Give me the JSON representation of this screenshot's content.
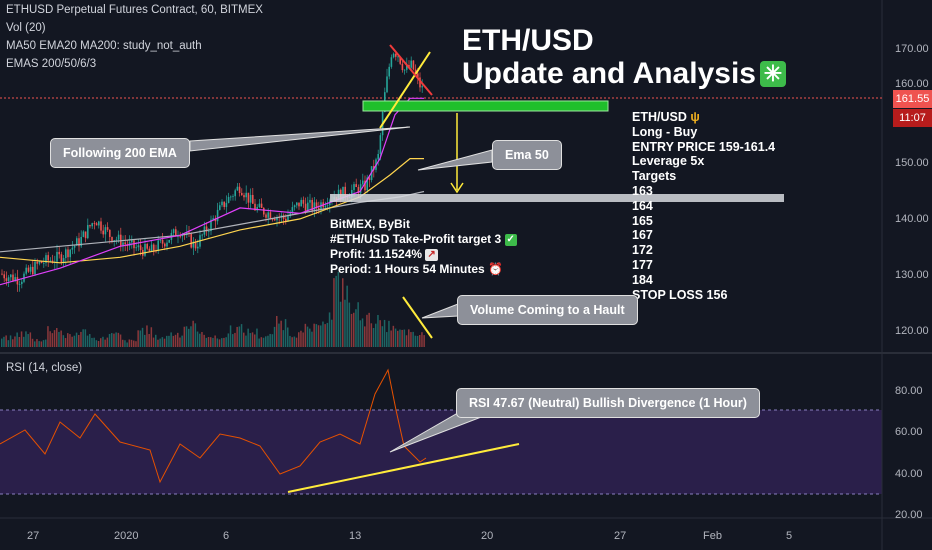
{
  "header": {
    "symbol_line": "ETHUSD Perpetual Futures Contract, 60, BITMEX",
    "indicators": [
      "Vol (20)",
      "MA50 EMA20 MA200: study_not_auth",
      "EMAS 200/50/6/3"
    ],
    "rsi_label": "RSI (14, close)"
  },
  "title": {
    "line1": "ETH/USD",
    "line2": "Update and Analysis",
    "icon": "sparkle-icon"
  },
  "trade_setup": {
    "pair": "ETH/USD",
    "pair_icon": "trident-icon",
    "direction": "Long - Buy",
    "entry": "ENTRY PRICE 159-161.4",
    "leverage": "Leverage 5x",
    "targets_label": "Targets",
    "targets": [
      "163",
      "164",
      "165",
      "167",
      "172",
      "177",
      "184"
    ],
    "stop_loss": "STOP LOSS 156"
  },
  "profit_box": {
    "exchanges": "BitMEX, ByBit",
    "take_profit": "#ETH/USD Take-Profit target 3",
    "profit": "Profit: 11.1524%",
    "period": "Period: 1 Hours 54 Minutes"
  },
  "callouts": {
    "ema200": "Following 200 EMA",
    "ema50": "Ema 50",
    "volume": "Volume Coming to a Hault",
    "rsi": "RSI 47.67 (Neutral) Bullish Divergence (1 Hour)"
  },
  "price_axis": {
    "ticks": [
      "170.00",
      "160.00",
      "150.00",
      "140.00",
      "130.00",
      "120.00"
    ],
    "last_price": "161.55",
    "countdown": "11:07"
  },
  "rsi_axis": {
    "ticks": [
      "80.00",
      "60.00",
      "40.00",
      "20.00"
    ]
  },
  "time_axis": {
    "ticks": [
      "27",
      "2020",
      "6",
      "13",
      "20",
      "27",
      "Feb",
      "5"
    ]
  },
  "colors": {
    "background": "#131722",
    "up": "#26a69a",
    "down": "#ef5350",
    "ema_fast": "#e040fb",
    "ma50": "#ffd54f",
    "ema200": "#b0b3ba",
    "rsi_line": "#e65100",
    "rsi_band": "#2a1f4a",
    "annotation": "#ffeb3b",
    "support": "#1fbf2b"
  },
  "chart_data": {
    "type": "candlestick",
    "timeframe": "60",
    "price_range": [
      116,
      176
    ],
    "rsi_range": [
      18,
      96
    ],
    "rsi_levels": [
      70,
      30
    ],
    "price_path": [
      [
        0,
        129
      ],
      [
        20,
        128
      ],
      [
        40,
        131
      ],
      [
        60,
        132
      ],
      [
        80,
        135
      ],
      [
        95,
        139
      ],
      [
        110,
        136
      ],
      [
        130,
        134
      ],
      [
        150,
        133
      ],
      [
        165,
        135
      ],
      [
        180,
        137
      ],
      [
        195,
        134
      ],
      [
        210,
        138
      ],
      [
        225,
        142
      ],
      [
        240,
        145
      ],
      [
        255,
        141
      ],
      [
        270,
        140
      ],
      [
        285,
        139
      ],
      [
        300,
        142
      ],
      [
        315,
        141
      ],
      [
        330,
        143
      ],
      [
        350,
        144
      ],
      [
        365,
        145
      ],
      [
        378,
        150
      ],
      [
        385,
        162
      ],
      [
        392,
        170
      ],
      [
        398,
        169
      ],
      [
        405,
        166
      ],
      [
        412,
        167
      ],
      [
        418,
        164
      ],
      [
        424,
        162
      ]
    ],
    "ema_fast_path": [
      [
        0,
        127
      ],
      [
        60,
        130
      ],
      [
        120,
        134
      ],
      [
        180,
        136
      ],
      [
        240,
        141
      ],
      [
        300,
        140
      ],
      [
        360,
        144
      ],
      [
        380,
        150
      ],
      [
        395,
        158
      ],
      [
        410,
        161
      ],
      [
        424,
        161
      ]
    ],
    "ma50_path": [
      [
        0,
        132
      ],
      [
        60,
        131
      ],
      [
        120,
        132
      ],
      [
        180,
        134
      ],
      [
        240,
        137
      ],
      [
        300,
        139
      ],
      [
        360,
        143
      ],
      [
        390,
        147
      ],
      [
        410,
        150
      ],
      [
        424,
        150
      ]
    ],
    "ema200_path": [
      [
        0,
        133
      ],
      [
        60,
        134
      ],
      [
        120,
        135
      ],
      [
        180,
        136
      ],
      [
        240,
        138
      ],
      [
        300,
        140
      ],
      [
        360,
        142
      ],
      [
        400,
        143
      ],
      [
        424,
        144
      ]
    ],
    "rsi_path": [
      [
        0,
        55
      ],
      [
        25,
        62
      ],
      [
        45,
        50
      ],
      [
        60,
        66
      ],
      [
        80,
        58
      ],
      [
        95,
        70
      ],
      [
        120,
        56
      ],
      [
        150,
        52
      ],
      [
        160,
        36
      ],
      [
        180,
        55
      ],
      [
        200,
        48
      ],
      [
        220,
        60
      ],
      [
        240,
        58
      ],
      [
        260,
        54
      ],
      [
        280,
        40
      ],
      [
        300,
        44
      ],
      [
        320,
        56
      ],
      [
        340,
        60
      ],
      [
        360,
        55
      ],
      [
        375,
        80
      ],
      [
        388,
        92
      ],
      [
        396,
        72
      ],
      [
        404,
        54
      ],
      [
        412,
        50
      ],
      [
        420,
        46
      ],
      [
        426,
        48
      ]
    ],
    "volume_levels": [
      0.15,
      0.22,
      0.12,
      0.3,
      0.18,
      0.25,
      0.14,
      0.2,
      0.1,
      0.28,
      0.16,
      0.22,
      0.35,
      0.2,
      0.15,
      0.3,
      0.25,
      0.18,
      0.4,
      0.22,
      0.3,
      0.5,
      1.0,
      0.6,
      0.45,
      0.35,
      0.25,
      0.2
    ]
  }
}
